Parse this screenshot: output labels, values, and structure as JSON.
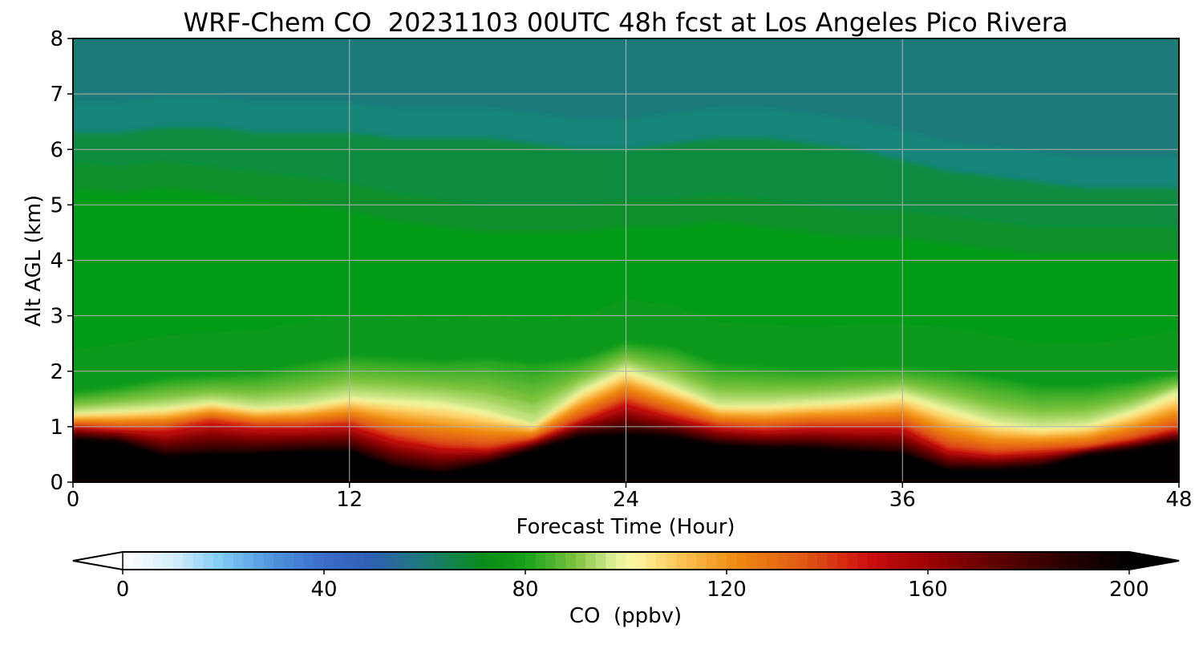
{
  "chart_data": {
    "type": "heatmap",
    "title": "WRF-Chem CO  20231103 00UTC 48h fcst at Los Angeles Pico Rivera",
    "xlabel": "Forecast Time (Hour)",
    "ylabel": "Alt AGL (km)",
    "xlim": [
      0,
      48
    ],
    "ylim": [
      0,
      8
    ],
    "x_ticks": [
      "0",
      "12",
      "24",
      "36",
      "48"
    ],
    "y_ticks": [
      "0",
      "1",
      "2",
      "3",
      "4",
      "5",
      "6",
      "7",
      "8"
    ],
    "grid": true,
    "colorbar": {
      "label": "CO  (ppbv)",
      "min": 0,
      "max": 200,
      "ticks": [
        "0",
        "40",
        "80",
        "120",
        "160",
        "200"
      ],
      "extend": "both",
      "orientation": "horizontal",
      "placement": "bottom"
    },
    "x_hours": [
      0,
      2,
      4,
      6,
      8,
      10,
      12,
      14,
      16,
      18,
      20,
      22,
      24,
      26,
      28,
      30,
      32,
      34,
      36,
      38,
      40,
      42,
      44,
      46,
      48
    ],
    "features_km": {
      "black_core_top": [
        0.8,
        0.75,
        0.5,
        0.55,
        0.55,
        0.6,
        0.6,
        0.3,
        0.2,
        0.35,
        0.6,
        0.85,
        0.9,
        0.85,
        0.7,
        0.65,
        0.65,
        0.6,
        0.55,
        0.25,
        0.25,
        0.3,
        0.5,
        0.6,
        0.75
      ],
      "red_layer_top": [
        1.0,
        0.95,
        0.95,
        1.1,
        1.0,
        1.0,
        1.05,
        0.8,
        0.65,
        0.6,
        0.75,
        1.1,
        1.45,
        1.2,
        1.0,
        0.95,
        1.0,
        1.0,
        1.0,
        0.6,
        0.5,
        0.55,
        0.6,
        0.75,
        0.95
      ],
      "yellow_band_top": [
        1.25,
        1.3,
        1.35,
        1.45,
        1.35,
        1.4,
        1.55,
        1.5,
        1.45,
        1.3,
        1.05,
        1.65,
        2.05,
        1.75,
        1.4,
        1.4,
        1.45,
        1.5,
        1.6,
        1.35,
        1.1,
        1.0,
        1.05,
        1.3,
        1.65
      ],
      "light_green_top": [
        1.6,
        1.7,
        1.85,
        1.9,
        1.95,
        2.1,
        2.25,
        2.2,
        2.15,
        2.2,
        2.1,
        2.2,
        2.5,
        2.4,
        2.1,
        2.05,
        2.0,
        2.05,
        2.05,
        2.0,
        1.85,
        1.7,
        1.7,
        1.8,
        1.95
      ],
      "bright_green_top": [
        5.3,
        5.2,
        5.3,
        5.2,
        5.1,
        5.0,
        4.9,
        4.7,
        4.6,
        4.5,
        4.5,
        4.5,
        4.6,
        4.6,
        4.7,
        4.6,
        4.5,
        4.4,
        4.4,
        4.3,
        4.2,
        4.1,
        4.1,
        4.1,
        4.1
      ],
      "teal_start": [
        6.3,
        6.3,
        6.4,
        6.4,
        6.3,
        6.3,
        6.3,
        6.2,
        6.2,
        6.2,
        6.1,
        6.0,
        6.0,
        6.1,
        6.2,
        6.2,
        6.1,
        6.0,
        5.8,
        5.6,
        5.5,
        5.4,
        5.3,
        5.3,
        5.3
      ]
    }
  }
}
